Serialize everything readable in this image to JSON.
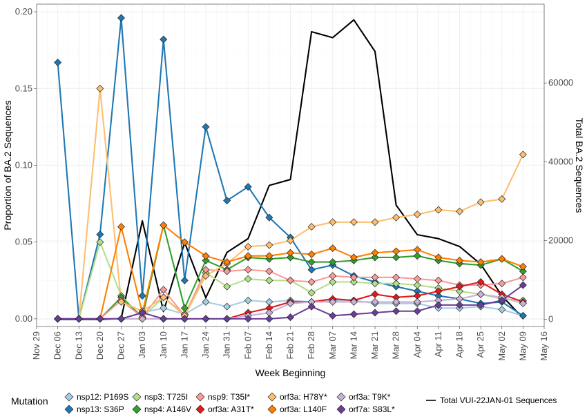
{
  "chart_data": {
    "type": "line",
    "xlabel": "Week Beginning",
    "ylabel": "Proportion of BA.2 Sequences",
    "y2label": "Total BA.2 Sequences",
    "x_ticks": [
      "Nov 29",
      "Dec 06",
      "Dec 13",
      "Dec 20",
      "Dec 27",
      "Jan 03",
      "Jan 10",
      "Jan 17",
      "Jan 24",
      "Jan 31",
      "Feb 07",
      "Feb 14",
      "Feb 21",
      "Feb 28",
      "Mar 07",
      "Mar 14",
      "Mar 21",
      "Mar 28",
      "Apr 04",
      "Apr 11",
      "Apr 18",
      "Apr 25",
      "May 02",
      "May 09",
      "May 16"
    ],
    "x": [
      "Dec 06",
      "Dec 13",
      "Dec 20",
      "Dec 27",
      "Jan 03",
      "Jan 10",
      "Jan 17",
      "Jan 24",
      "Jan 31",
      "Feb 07",
      "Feb 14",
      "Feb 21",
      "Feb 28",
      "Mar 07",
      "Mar 14",
      "Mar 21",
      "Mar 28",
      "Apr 04",
      "Apr 11",
      "Apr 18",
      "Apr 25",
      "May 02",
      "May 09"
    ],
    "ylim": [
      -0.005,
      0.205
    ],
    "y_ticks": [
      "0.00",
      "0.05",
      "0.10",
      "0.15",
      "0.20"
    ],
    "y2lim": [
      -1800,
      80000
    ],
    "y2_ticks": [
      "0",
      "20000",
      "40000",
      "60000"
    ],
    "grid": true,
    "legend_title": "Mutation",
    "legend_position": "bottom",
    "series": [
      {
        "name": "nsp12: P169S",
        "color": "#a6cee3",
        "values": [
          0,
          0,
          0,
          0,
          0.004,
          0.007,
          0.003,
          0.011,
          0.008,
          0.012,
          0.011,
          0.012,
          0.011,
          0.012,
          0.012,
          0.01,
          0.01,
          0.01,
          0.007,
          0.007,
          0.008,
          0.006,
          0.002
        ]
      },
      {
        "name": "nsp13: S36P",
        "color": "#1f78b4",
        "values": [
          0.167,
          0,
          0.055,
          0.196,
          0.015,
          0.182,
          0.025,
          0.125,
          0.077,
          0.086,
          0.066,
          0.053,
          0.032,
          0.035,
          0.028,
          0.024,
          0.021,
          0.018,
          0.015,
          0.013,
          0.01,
          0.011,
          0.002
        ]
      },
      {
        "name": "nsp3: T725I",
        "color": "#b2df8a",
        "values": [
          0,
          0,
          0.05,
          0.015,
          0.001,
          0.014,
          0.003,
          0.03,
          0.021,
          0.026,
          0.025,
          0.025,
          0.017,
          0.024,
          0.024,
          0.023,
          0.023,
          0.022,
          0.02,
          0.018,
          0.016,
          0.013,
          0.012
        ]
      },
      {
        "name": "nsp4: A146V",
        "color": "#33a02c",
        "values": [
          0,
          0,
          0,
          0.014,
          0.001,
          0.061,
          0.007,
          0.038,
          0.032,
          0.04,
          0.039,
          0.04,
          0.037,
          0.037,
          0.038,
          0.04,
          0.04,
          0.041,
          0.038,
          0.036,
          0.035,
          0.039,
          0.031
        ]
      },
      {
        "name": "nsp9: T35I*",
        "color": "#fb9a99",
        "values": [
          0,
          0,
          0,
          0.012,
          0.001,
          0.019,
          0.002,
          0.032,
          0.031,
          0.032,
          0.031,
          0.025,
          0.024,
          0.028,
          0.027,
          0.027,
          0.027,
          0.026,
          0.025,
          0.022,
          0.022,
          0.023,
          0.027
        ]
      },
      {
        "name": "orf3a: A31T*",
        "color": "#e31a1c",
        "values": [
          0,
          0,
          0,
          0,
          0,
          0,
          0,
          0,
          0,
          0.004,
          0.007,
          0.011,
          0.011,
          0.013,
          0.012,
          0.016,
          0.014,
          0.015,
          0.018,
          0.021,
          0.024,
          0.016,
          0.011
        ]
      },
      {
        "name": "orf3a: H78Y*",
        "color": "#fdbf6f",
        "values": [
          0,
          0,
          0.15,
          0.011,
          0.005,
          0.014,
          0.002,
          0.028,
          0.036,
          0.047,
          0.048,
          0.051,
          0.06,
          0.063,
          0.063,
          0.063,
          0.066,
          0.068,
          0.071,
          0.07,
          0.076,
          0.078,
          0.107
        ]
      },
      {
        "name": "orf3a: L140F",
        "color": "#ff7f00",
        "values": [
          0,
          0,
          0,
          0.06,
          0.004,
          0.061,
          0.05,
          0.041,
          0.037,
          0.041,
          0.041,
          0.043,
          0.042,
          0.046,
          0.04,
          0.043,
          0.044,
          0.045,
          0.04,
          0.038,
          0.037,
          0.039,
          0.034
        ]
      },
      {
        "name": "orf3a: T9K*",
        "color": "#cab2d6",
        "values": [
          0,
          0,
          0,
          0,
          0,
          0,
          0,
          0,
          0,
          0.002,
          0.004,
          0.01,
          0.011,
          0.011,
          0.011,
          0.011,
          0.011,
          0.011,
          0.012,
          0.013,
          0.016,
          0.014,
          0.01
        ]
      },
      {
        "name": "orf7a: S83L*",
        "color": "#6a3d9a",
        "values": [
          0,
          0,
          0,
          0,
          0.004,
          0,
          0,
          0,
          0,
          0,
          0,
          0.001,
          0.008,
          0.002,
          0.003,
          0.004,
          0.005,
          0.005,
          0.009,
          0.009,
          0.009,
          0.012,
          0.022
        ]
      }
    ],
    "total": {
      "name": "Total VUI-22JAN-01 Sequences",
      "color": "#000000",
      "values": [
        0,
        0,
        0,
        200,
        25000,
        2000,
        19500,
        5500,
        17000,
        20500,
        34000,
        35500,
        73000,
        71500,
        76000,
        68000,
        29000,
        21500,
        20500,
        18500,
        14000,
        6000,
        300
      ]
    }
  }
}
